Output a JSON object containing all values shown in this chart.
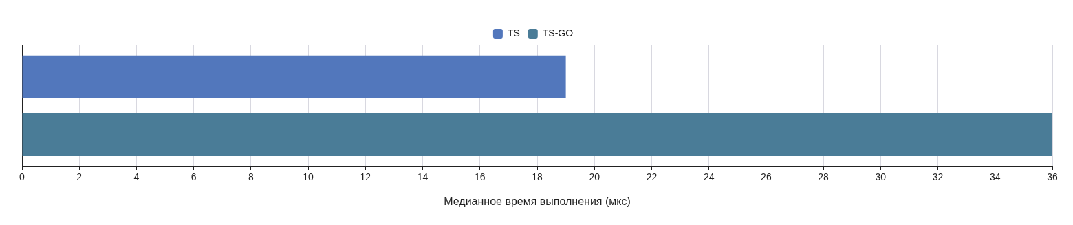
{
  "chart_data": {
    "type": "bar",
    "orientation": "horizontal",
    "xlabel": "Медианное время выполнения (мкс)",
    "categories": [
      null
    ],
    "series": [
      {
        "name": "TS",
        "color": "#5277bc",
        "values": [
          19
        ]
      },
      {
        "name": "TS-GO",
        "color": "#4a7c97",
        "values": [
          36
        ]
      }
    ],
    "xlim": [
      0,
      36
    ],
    "xticks": [
      0,
      2,
      4,
      6,
      8,
      10,
      12,
      14,
      16,
      18,
      20,
      22,
      24,
      26,
      28,
      30,
      32,
      34,
      36
    ],
    "grid": "x",
    "legend": "top"
  }
}
